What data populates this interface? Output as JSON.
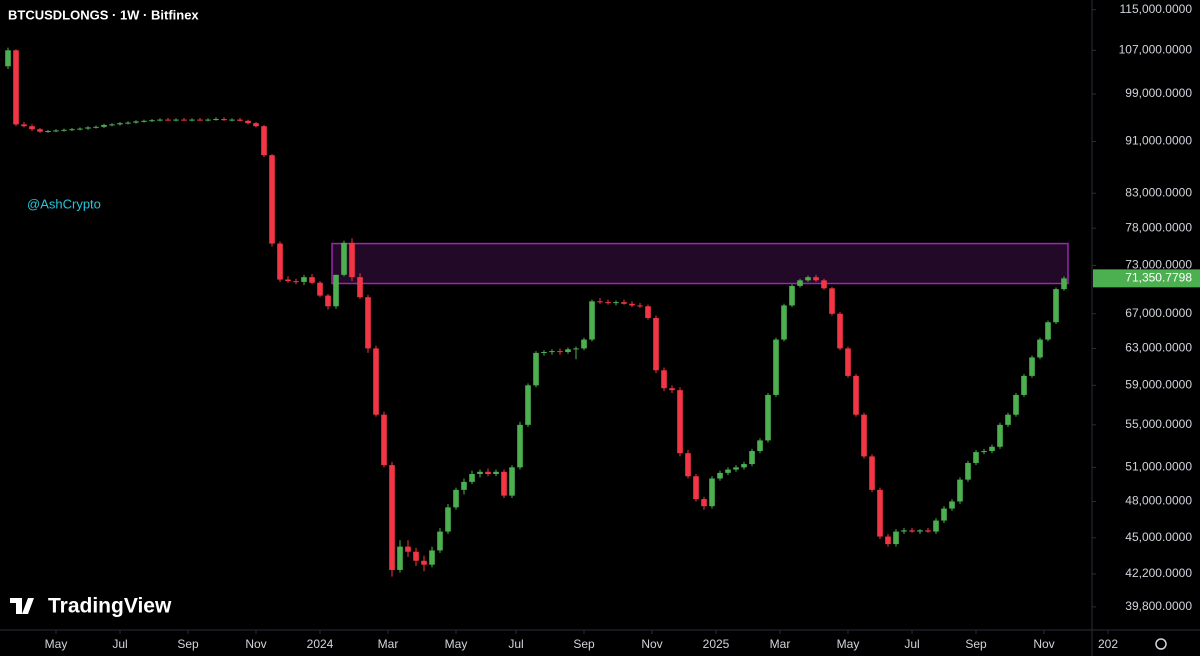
{
  "chart_data": {
    "type": "candlestick",
    "title": "BTCUSDLONGS · 1W · Bitfinex",
    "annotation": "@AshCrypto",
    "watermark": "TradingView",
    "log_scale": true,
    "up_color": "#4caf50",
    "down_color": "#f23645",
    "zone": {
      "x": [
        41,
        132
      ],
      "y": [
        70700,
        75900
      ],
      "color": "#9c27b0"
    },
    "last_price": {
      "value": 71350.7798,
      "label": "71,350.7798"
    },
    "xlim": [
      -1,
      139
    ],
    "xticks": [
      {
        "value": 6,
        "label": "May"
      },
      {
        "value": 14,
        "label": "Jul"
      },
      {
        "value": 22.5,
        "label": "Sep"
      },
      {
        "value": 31,
        "label": "Nov"
      },
      {
        "value": 39,
        "label": "2024"
      },
      {
        "value": 47.5,
        "label": "Mar"
      },
      {
        "value": 56,
        "label": "May"
      },
      {
        "value": 63.5,
        "label": "Jul"
      },
      {
        "value": 72,
        "label": "Sep"
      },
      {
        "value": 80.5,
        "label": "Nov"
      },
      {
        "value": 88.5,
        "label": "2025"
      },
      {
        "value": 96.5,
        "label": "Mar"
      },
      {
        "value": 105,
        "label": "May"
      },
      {
        "value": 113,
        "label": "Jul"
      },
      {
        "value": 121,
        "label": "Sep"
      },
      {
        "value": 129.5,
        "label": "Nov"
      },
      {
        "value": 137.5,
        "label": "202"
      }
    ],
    "ylim": [
      38200,
      117000
    ],
    "yticks": [
      {
        "value": 115000,
        "label": "115,000.0000"
      },
      {
        "value": 107000,
        "label": "107,000.0000"
      },
      {
        "value": 99000,
        "label": "99,000.0000"
      },
      {
        "value": 91000,
        "label": "91,000.0000"
      },
      {
        "value": 83000,
        "label": "83,000.0000"
      },
      {
        "value": 78000,
        "label": "78,000.0000"
      },
      {
        "value": 73000,
        "label": "73,000.0000"
      },
      {
        "value": 67000,
        "label": "67,000.0000"
      },
      {
        "value": 63000,
        "label": "63,000.0000"
      },
      {
        "value": 59000,
        "label": "59,000.0000"
      },
      {
        "value": 55000,
        "label": "55,000.0000"
      },
      {
        "value": 51000,
        "label": "51,000.0000"
      },
      {
        "value": 48000,
        "label": "48,000.0000"
      },
      {
        "value": 45000,
        "label": "45,000.0000"
      },
      {
        "value": 42200,
        "label": "42,200.0000"
      },
      {
        "value": 39800,
        "label": "39,800.0000"
      }
    ],
    "ohlc": [
      [
        104000,
        107500,
        103500,
        107000
      ],
      [
        107000,
        107200,
        93500,
        93800
      ],
      [
        93800,
        94200,
        93300,
        93500
      ],
      [
        93500,
        93800,
        92700,
        93000
      ],
      [
        93000,
        93200,
        92400,
        92600
      ],
      [
        92600,
        92900,
        92400,
        92700
      ],
      [
        92700,
        93000,
        92500,
        92800
      ],
      [
        92800,
        93100,
        92600,
        92900
      ],
      [
        92900,
        93200,
        92700,
        93000
      ],
      [
        93000,
        93300,
        92800,
        93100
      ],
      [
        93100,
        93500,
        92900,
        93300
      ],
      [
        93300,
        93600,
        93100,
        93400
      ],
      [
        93400,
        93900,
        93200,
        93700
      ],
      [
        93700,
        94000,
        93500,
        93800
      ],
      [
        93800,
        94200,
        93600,
        94000
      ],
      [
        94000,
        94300,
        93800,
        94100
      ],
      [
        94100,
        94500,
        93900,
        94300
      ],
      [
        94300,
        94600,
        94100,
        94400
      ],
      [
        94400,
        94700,
        94200,
        94500
      ],
      [
        94500,
        94800,
        94300,
        94600
      ],
      [
        94600,
        94900,
        94400,
        94500
      ],
      [
        94500,
        94800,
        94300,
        94600
      ],
      [
        94600,
        94900,
        94400,
        94500
      ],
      [
        94500,
        94800,
        94300,
        94600
      ],
      [
        94600,
        94900,
        94400,
        94500
      ],
      [
        94500,
        94800,
        94300,
        94600
      ],
      [
        94600,
        95000,
        94400,
        94700
      ],
      [
        94700,
        95000,
        94400,
        94500
      ],
      [
        94500,
        94800,
        94300,
        94600
      ],
      [
        94600,
        94900,
        94300,
        94400
      ],
      [
        94400,
        94600,
        93800,
        94000
      ],
      [
        94000,
        94200,
        93300,
        93500
      ],
      [
        93500,
        93700,
        88500,
        88800
      ],
      [
        88800,
        89000,
        75500,
        75900
      ],
      [
        75900,
        76200,
        70900,
        71200
      ],
      [
        71200,
        71600,
        70800,
        71000
      ],
      [
        71000,
        71300,
        70600,
        70900
      ],
      [
        70900,
        71800,
        70500,
        71500
      ],
      [
        71500,
        71900,
        70600,
        70800
      ],
      [
        70800,
        71000,
        69000,
        69200
      ],
      [
        69200,
        69400,
        67500,
        67900
      ],
      [
        67900,
        71800,
        67600,
        71800
      ],
      [
        71800,
        76300,
        71600,
        76000
      ],
      [
        76000,
        76600,
        71000,
        71500
      ],
      [
        71500,
        72000,
        68800,
        69000
      ],
      [
        69000,
        69300,
        62500,
        63000
      ],
      [
        63000,
        63300,
        55800,
        56000
      ],
      [
        56000,
        56300,
        51000,
        51200
      ],
      [
        51200,
        51500,
        42000,
        42500
      ],
      [
        42500,
        44800,
        42300,
        44300
      ],
      [
        44300,
        44800,
        43500,
        43900
      ],
      [
        43900,
        44200,
        42800,
        43200
      ],
      [
        43200,
        43600,
        42400,
        42900
      ],
      [
        42900,
        44300,
        42700,
        44000
      ],
      [
        44000,
        45800,
        43800,
        45500
      ],
      [
        45500,
        47800,
        45300,
        47500
      ],
      [
        47500,
        49200,
        47300,
        49000
      ],
      [
        49000,
        50000,
        48600,
        49700
      ],
      [
        49700,
        50700,
        49500,
        50400
      ],
      [
        50400,
        50800,
        50100,
        50600
      ],
      [
        50600,
        50900,
        50200,
        50400
      ],
      [
        50400,
        50800,
        50200,
        50600
      ],
      [
        50600,
        50800,
        48300,
        48500
      ],
      [
        48500,
        51200,
        48300,
        51000
      ],
      [
        51000,
        55300,
        50800,
        55000
      ],
      [
        55000,
        59200,
        54800,
        59000
      ],
      [
        59000,
        62700,
        58800,
        62500
      ],
      [
        62500,
        62800,
        62200,
        62600
      ],
      [
        62600,
        62900,
        62300,
        62700
      ],
      [
        62700,
        63000,
        62300,
        62600
      ],
      [
        62600,
        63100,
        62400,
        62900
      ],
      [
        62900,
        63200,
        61800,
        63000
      ],
      [
        63000,
        64200,
        62800,
        64000
      ],
      [
        64000,
        68700,
        63800,
        68500
      ],
      [
        68500,
        68900,
        68200,
        68400
      ],
      [
        68400,
        68700,
        68100,
        68300
      ],
      [
        68300,
        68600,
        68000,
        68400
      ],
      [
        68400,
        68700,
        68100,
        68200
      ],
      [
        68200,
        68500,
        67800,
        68000
      ],
      [
        68000,
        68300,
        67700,
        67900
      ],
      [
        67900,
        68100,
        66300,
        66500
      ],
      [
        66500,
        66800,
        60300,
        60600
      ],
      [
        60600,
        60900,
        58400,
        58700
      ],
      [
        58700,
        59000,
        58200,
        58500
      ],
      [
        58500,
        58800,
        52000,
        52300
      ],
      [
        52300,
        52600,
        50000,
        50200
      ],
      [
        50200,
        50400,
        48000,
        48200
      ],
      [
        48200,
        48400,
        47300,
        47600
      ],
      [
        47600,
        50200,
        47400,
        50000
      ],
      [
        50000,
        50700,
        49800,
        50500
      ],
      [
        50500,
        51000,
        50300,
        50800
      ],
      [
        50800,
        51200,
        50600,
        51000
      ],
      [
        51000,
        51500,
        50800,
        51300
      ],
      [
        51300,
        52700,
        51100,
        52500
      ],
      [
        52500,
        53700,
        52300,
        53500
      ],
      [
        53500,
        58200,
        53300,
        58000
      ],
      [
        58000,
        64200,
        57800,
        64000
      ],
      [
        64000,
        68200,
        63800,
        68000
      ],
      [
        68000,
        70600,
        67800,
        70400
      ],
      [
        70400,
        71300,
        70200,
        71100
      ],
      [
        71100,
        71700,
        70900,
        71500
      ],
      [
        71500,
        71800,
        70900,
        71100
      ],
      [
        71100,
        71300,
        69900,
        70100
      ],
      [
        70100,
        70300,
        66800,
        67000
      ],
      [
        67000,
        67200,
        62800,
        63000
      ],
      [
        63000,
        63200,
        59800,
        60000
      ],
      [
        60000,
        60200,
        55800,
        56000
      ],
      [
        56000,
        56200,
        51800,
        52000
      ],
      [
        52000,
        52200,
        48800,
        49000
      ],
      [
        49000,
        49200,
        44900,
        45100
      ],
      [
        45100,
        45300,
        44300,
        44500
      ],
      [
        44500,
        45700,
        44300,
        45500
      ],
      [
        45500,
        45800,
        45300,
        45600
      ],
      [
        45600,
        45800,
        45400,
        45500
      ],
      [
        45500,
        45700,
        45300,
        45600
      ],
      [
        45600,
        45800,
        45400,
        45500
      ],
      [
        45500,
        46600,
        45300,
        46400
      ],
      [
        46400,
        47600,
        46200,
        47400
      ],
      [
        47400,
        48200,
        47200,
        48000
      ],
      [
        48000,
        50100,
        47800,
        49900
      ],
      [
        49900,
        51600,
        49700,
        51400
      ],
      [
        51400,
        52600,
        51200,
        52400
      ],
      [
        52400,
        52700,
        52200,
        52500
      ],
      [
        52500,
        53100,
        52300,
        52900
      ],
      [
        52900,
        55200,
        52700,
        55000
      ],
      [
        55000,
        56200,
        54800,
        56000
      ],
      [
        56000,
        58200,
        55800,
        58000
      ],
      [
        58000,
        60200,
        57800,
        60000
      ],
      [
        60000,
        62200,
        59800,
        62000
      ],
      [
        62000,
        64200,
        61800,
        64000
      ],
      [
        64000,
        66200,
        63800,
        66000
      ],
      [
        66000,
        70200,
        65800,
        70000
      ],
      [
        70000,
        71600,
        69800,
        71350.7798
      ]
    ]
  }
}
